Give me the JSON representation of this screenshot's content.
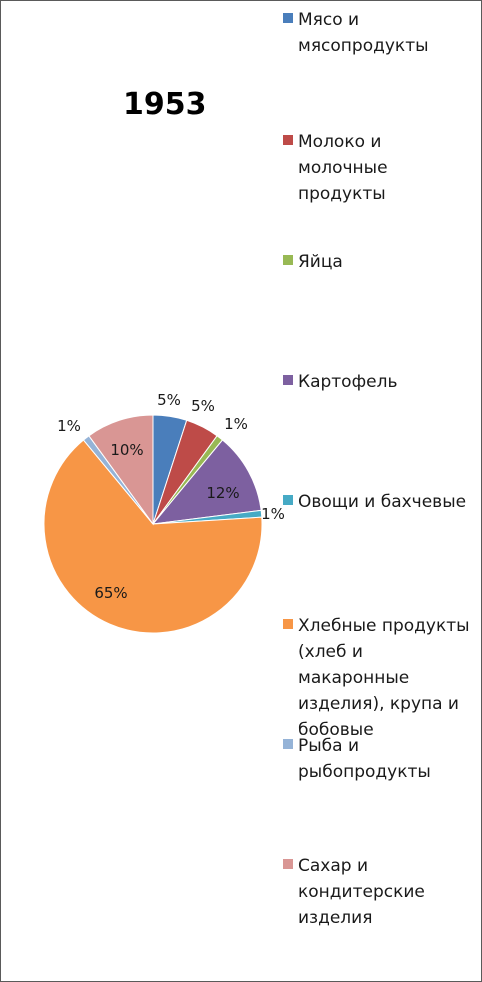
{
  "chart_data": {
    "type": "pie",
    "title": "1953",
    "slices": [
      {
        "label": "Мясо и\nмясопродукты",
        "value": 5,
        "display": "5%",
        "color": "#4a7ebb"
      },
      {
        "label": "Молоко и\nмолочные\nпродукты",
        "value": 5,
        "display": "5%",
        "color": "#be4b48"
      },
      {
        "label": "Яйца",
        "value": 1,
        "display": "1%",
        "color": "#98b954"
      },
      {
        "label": "Картофель",
        "value": 12,
        "display": "12%",
        "color": "#7d60a0"
      },
      {
        "label": "Овощи и бахчевые",
        "value": 1,
        "display": "1%",
        "color": "#46aac5"
      },
      {
        "label": "Хлебные продукты\n(хлеб и\nмакаронные\nизделия), крупа и\nбобовые",
        "value": 65,
        "display": "65%",
        "color": "#f79646"
      },
      {
        "label": "Рыба и\nрыбопродукты",
        "value": 1,
        "display": "1%",
        "color": "#95b3d7"
      },
      {
        "label": "Сахар и\nкондитерские\nизделия",
        "value": 10,
        "display": "10%",
        "color": "#d99694"
      }
    ],
    "legend_position": "right"
  }
}
